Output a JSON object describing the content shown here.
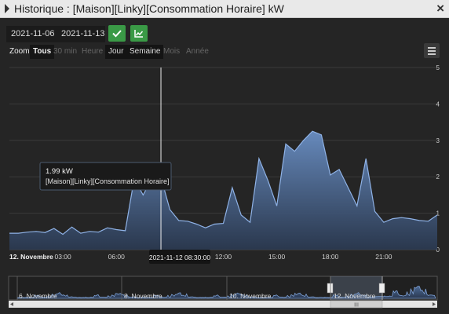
{
  "window": {
    "title": "Historique : [Maison][Linky][Consommation Horaire] kW",
    "close_label": "×"
  },
  "toolbar": {
    "date_start": "2021-11-06",
    "date_end": "2021-11-13",
    "validate_icon": "check-icon",
    "compare_icon": "chart-icon"
  },
  "zoom": {
    "label": "Zoom",
    "buttons": [
      "Tous",
      "30 min",
      "Heure",
      "Jour",
      "Semaine",
      "Mois",
      "Année"
    ],
    "active": [
      "Tous",
      "Jour",
      "Semaine"
    ],
    "menu_icon": "hamburger-menu-icon"
  },
  "tooltip": {
    "value": "1.99 kW",
    "series": "[Maison][Linky][Consommation Horaire]",
    "x_label": "2021-11-12 08:30:00"
  },
  "navigator": {
    "labels": [
      "6. Novembre",
      "8. Novembre",
      "10. Novembre",
      "12. Novembre"
    ],
    "scroll_label": "III"
  },
  "colors": {
    "fill_top": "#6a8fc4",
    "fill_bottom": "#2b3a52",
    "line": "#7fa7e0",
    "accent_green": "#3a9a46"
  },
  "chart_data": {
    "type": "area",
    "x_ticks": [
      "12. Novembre",
      "03:00",
      "06:00",
      "09:00",
      "12:00",
      "15:00",
      "18:00",
      "21:00"
    ],
    "y_ticks": [
      "0",
      "1",
      "2",
      "3",
      "4",
      "5"
    ],
    "ylim": [
      0,
      5
    ],
    "grid": true,
    "x_hours": [
      0,
      0.5,
      1,
      1.5,
      2,
      2.5,
      3,
      3.5,
      4,
      4.5,
      5,
      5.5,
      6,
      6.5,
      7,
      7.5,
      8,
      8.5,
      9,
      9.5,
      10,
      10.5,
      11,
      11.5,
      12,
      12.5,
      13,
      13.5,
      14,
      14.5,
      15,
      15.5,
      16,
      16.5,
      17,
      17.5,
      18,
      18.5,
      19,
      19.5,
      20,
      20.5,
      21,
      21.5,
      22,
      22.5,
      23,
      23.5,
      24
    ],
    "values": [
      0.45,
      0.45,
      0.48,
      0.5,
      0.47,
      0.58,
      0.42,
      0.62,
      0.45,
      0.5,
      0.48,
      0.6,
      0.55,
      0.52,
      1.95,
      1.5,
      1.95,
      1.99,
      1.1,
      0.8,
      0.78,
      0.7,
      0.6,
      0.7,
      0.72,
      1.7,
      0.95,
      0.75,
      2.5,
      1.9,
      1.2,
      2.9,
      2.7,
      3.0,
      3.25,
      3.15,
      2.05,
      2.2,
      1.7,
      1.2,
      2.5,
      1.05,
      0.75,
      0.85,
      0.88,
      0.85,
      0.8,
      0.78,
      0.95
    ],
    "cursor_hours": 8.5
  }
}
